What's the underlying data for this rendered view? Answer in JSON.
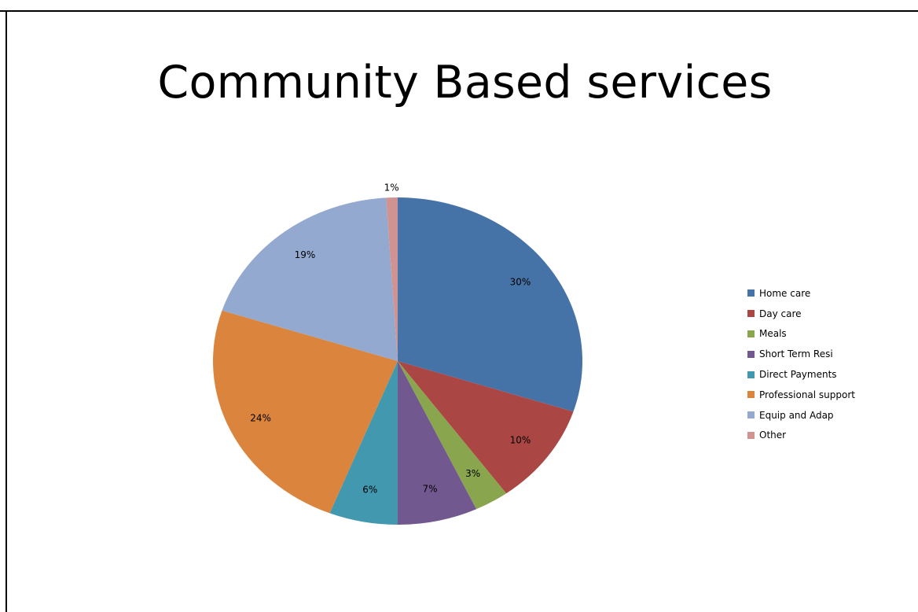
{
  "slide": {
    "title": "Community Based services"
  },
  "chart_data": {
    "type": "pie",
    "title": "Community Based services",
    "categories": [
      "Home care",
      "Day care",
      "Meals",
      "Short Term Resi",
      "Direct Payments",
      "Professional support",
      "Equip and Adap",
      "Other"
    ],
    "values": [
      30,
      10,
      3,
      7,
      6,
      24,
      19,
      1
    ],
    "labels": [
      "30%",
      "10%",
      "3%",
      "7%",
      "6%",
      "24%",
      "19%",
      "1%"
    ],
    "colors": [
      "#4572A7",
      "#AA4643",
      "#89A54E",
      "#71588F",
      "#4198AF",
      "#DB843D",
      "#93A9CF",
      "#D19392"
    ],
    "legend_position": "right",
    "start_angle": "12 o'clock",
    "direction": "clockwise"
  }
}
